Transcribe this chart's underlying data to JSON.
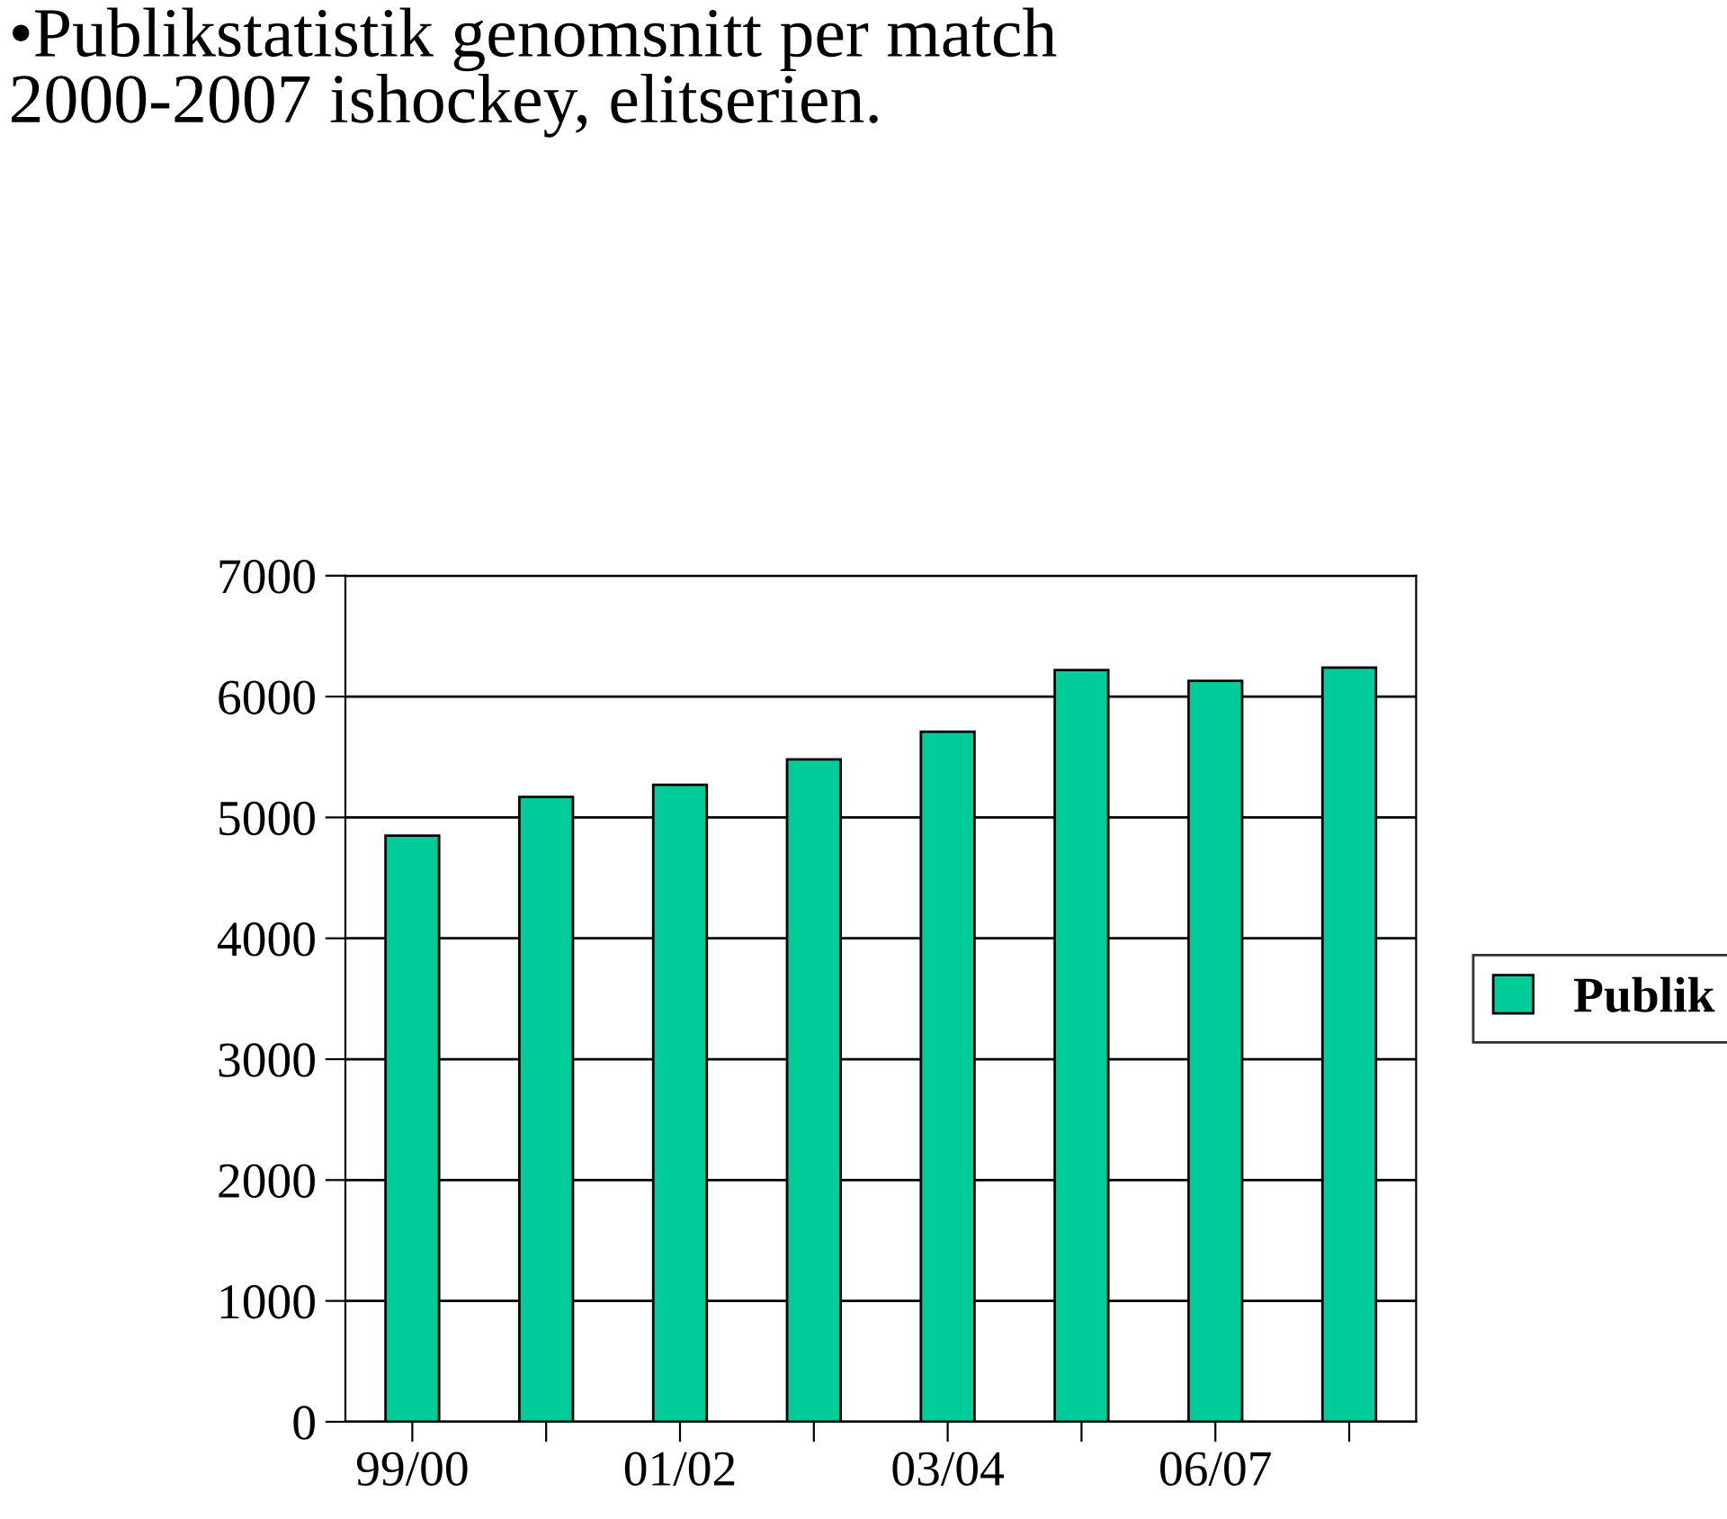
{
  "chart_data": {
    "type": "bar",
    "title": "•Publikstatistik genomsnitt per match\n2000-2007 ishockey, elitserien.",
    "categories": [
      "99/00",
      null,
      "01/02",
      null,
      "03/04",
      null,
      "06/07",
      null
    ],
    "series": [
      {
        "name": "Publik",
        "color": "#00cc99",
        "values": [
          4850,
          5170,
          5270,
          5480,
          5710,
          6220,
          6130,
          6240
        ]
      }
    ],
    "ylim": [
      0,
      7000
    ],
    "yticks": [
      0,
      1000,
      2000,
      3000,
      4000,
      5000,
      6000,
      7000
    ],
    "grid": "y",
    "legend": "right"
  }
}
